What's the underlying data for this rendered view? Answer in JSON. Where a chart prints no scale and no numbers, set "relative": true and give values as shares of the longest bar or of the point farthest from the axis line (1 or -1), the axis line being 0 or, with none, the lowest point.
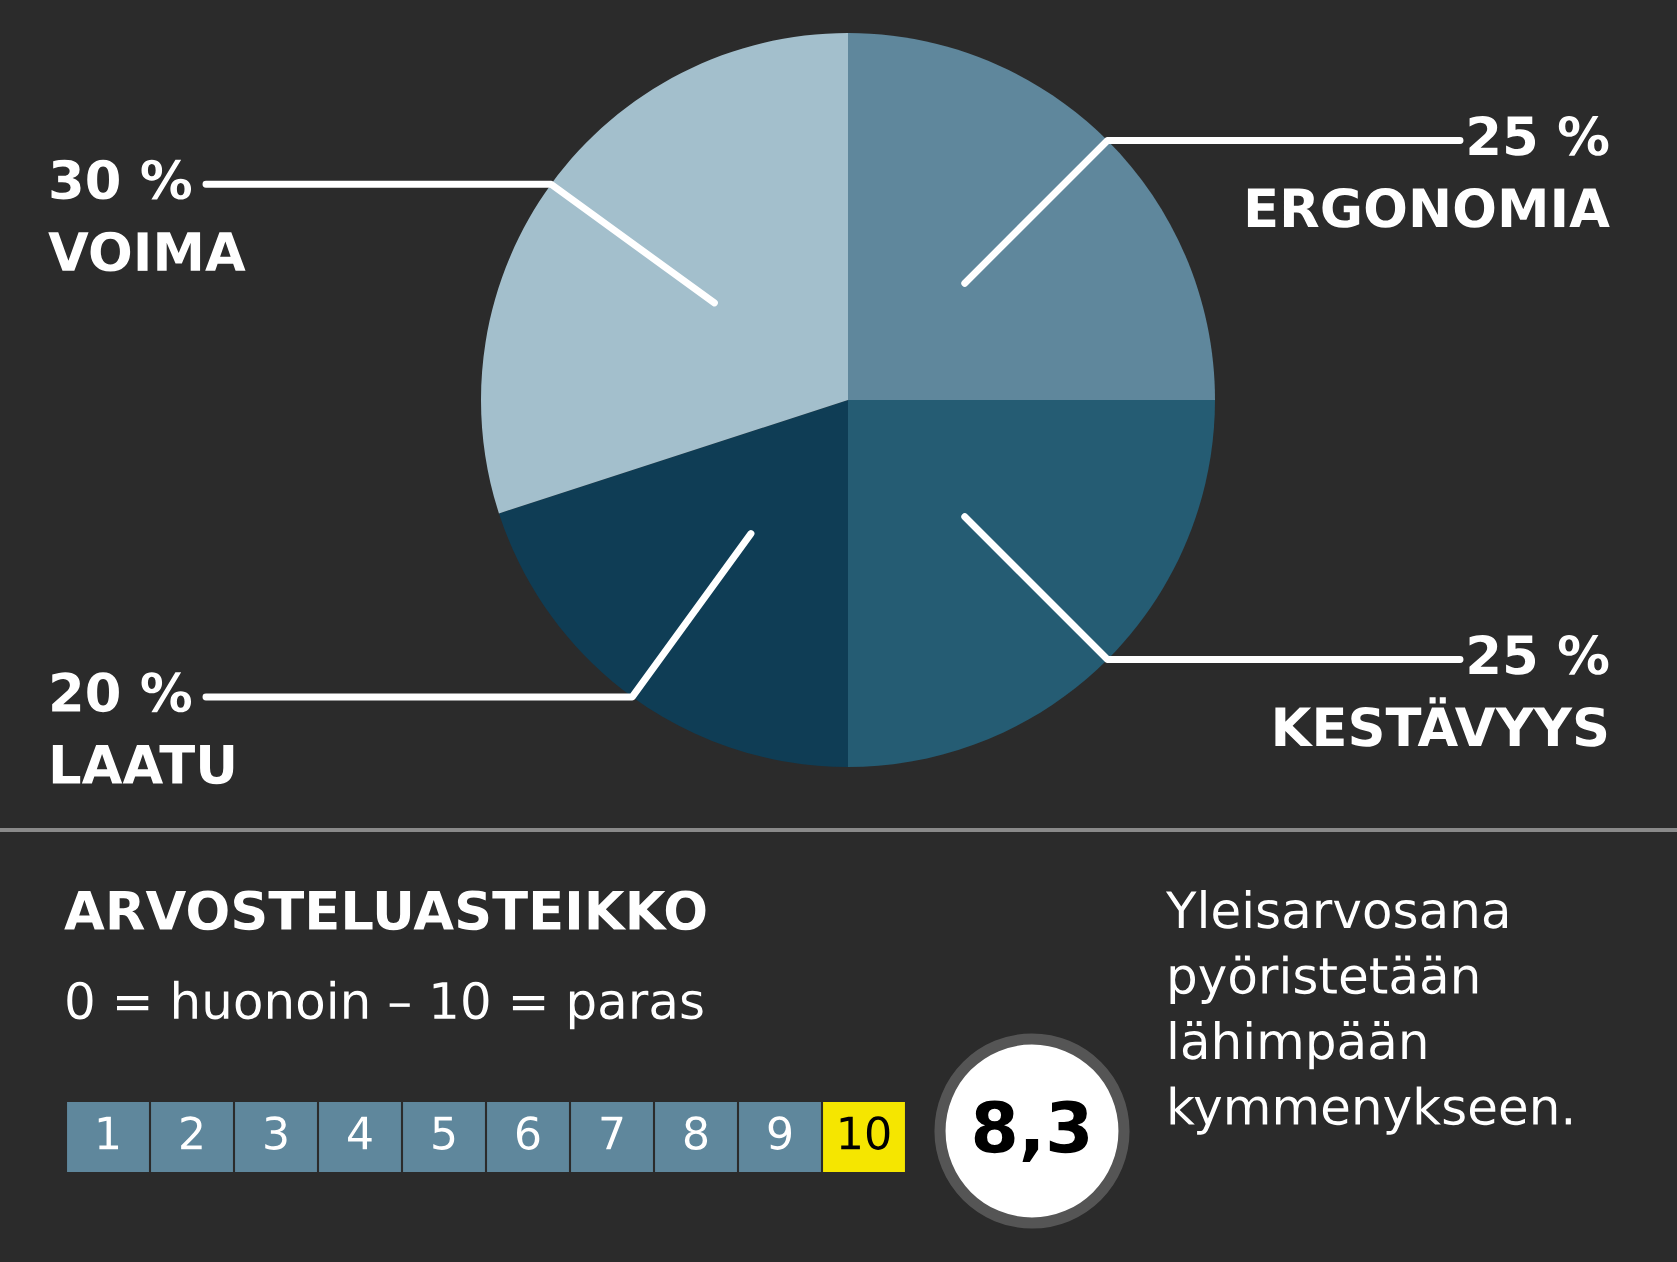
{
  "chart_data": [
    {
      "type": "pie",
      "categories": [
        "ERGONOMIA",
        "KESTÄVYYS",
        "LAATU",
        "VOIMA"
      ],
      "values": [
        25,
        25,
        20,
        30
      ],
      "colors": [
        "#5f879c",
        "#255c73",
        "#0f3d55",
        "#a3bfcc"
      ],
      "value_labels": [
        "25 %",
        "25 %",
        "20 %",
        "30 %"
      ]
    },
    {
      "type": "bar",
      "title": "ARVOSTELUASTEIKKO",
      "subtitle": "0 = huonoin – 10 = paras",
      "relative": true,
      "categories": [
        "1",
        "2",
        "3",
        "4",
        "5",
        "6",
        "7",
        "8",
        "9",
        "10"
      ],
      "values": [
        1,
        1,
        1,
        1,
        1,
        1,
        1,
        1,
        1,
        1
      ],
      "colors": [
        "#5f879c",
        "#5f879c",
        "#5f879c",
        "#5f879c",
        "#5f879c",
        "#5f879c",
        "#5f879c",
        "#5f879c",
        "#5f879c",
        "#f5e600"
      ],
      "annotations": [
        "8,3",
        "Yleisarvosana\npyöristetään\nlähimpään\nkymmenykseen."
      ]
    }
  ]
}
